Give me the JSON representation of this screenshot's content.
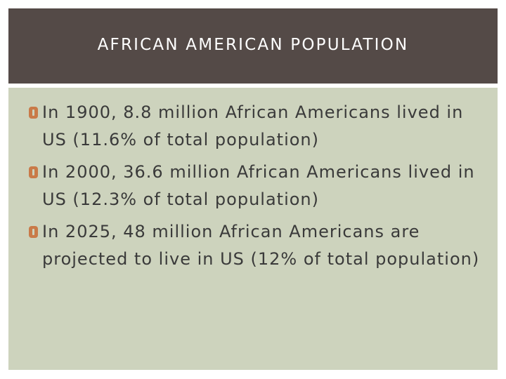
{
  "slide": {
    "title": "AFRICAN AMERICAN POPULATION",
    "bullets": [
      {
        "text": "In 1900, 8.8 million African Americans lived in US (11.6% of total population)"
      },
      {
        "text": "In 2000, 36.6 million African Americans lived in US (12.3% of total population)"
      },
      {
        "text": "In 2025, 48 million African Americans are projected to live in US (12% of total population)"
      }
    ]
  },
  "colors": {
    "header_background": "#544a47",
    "body_background": "#cdd3bd",
    "bullet_marker": "#c97a48",
    "title_text": "#ffffff",
    "body_text": "#3a3a3a"
  }
}
